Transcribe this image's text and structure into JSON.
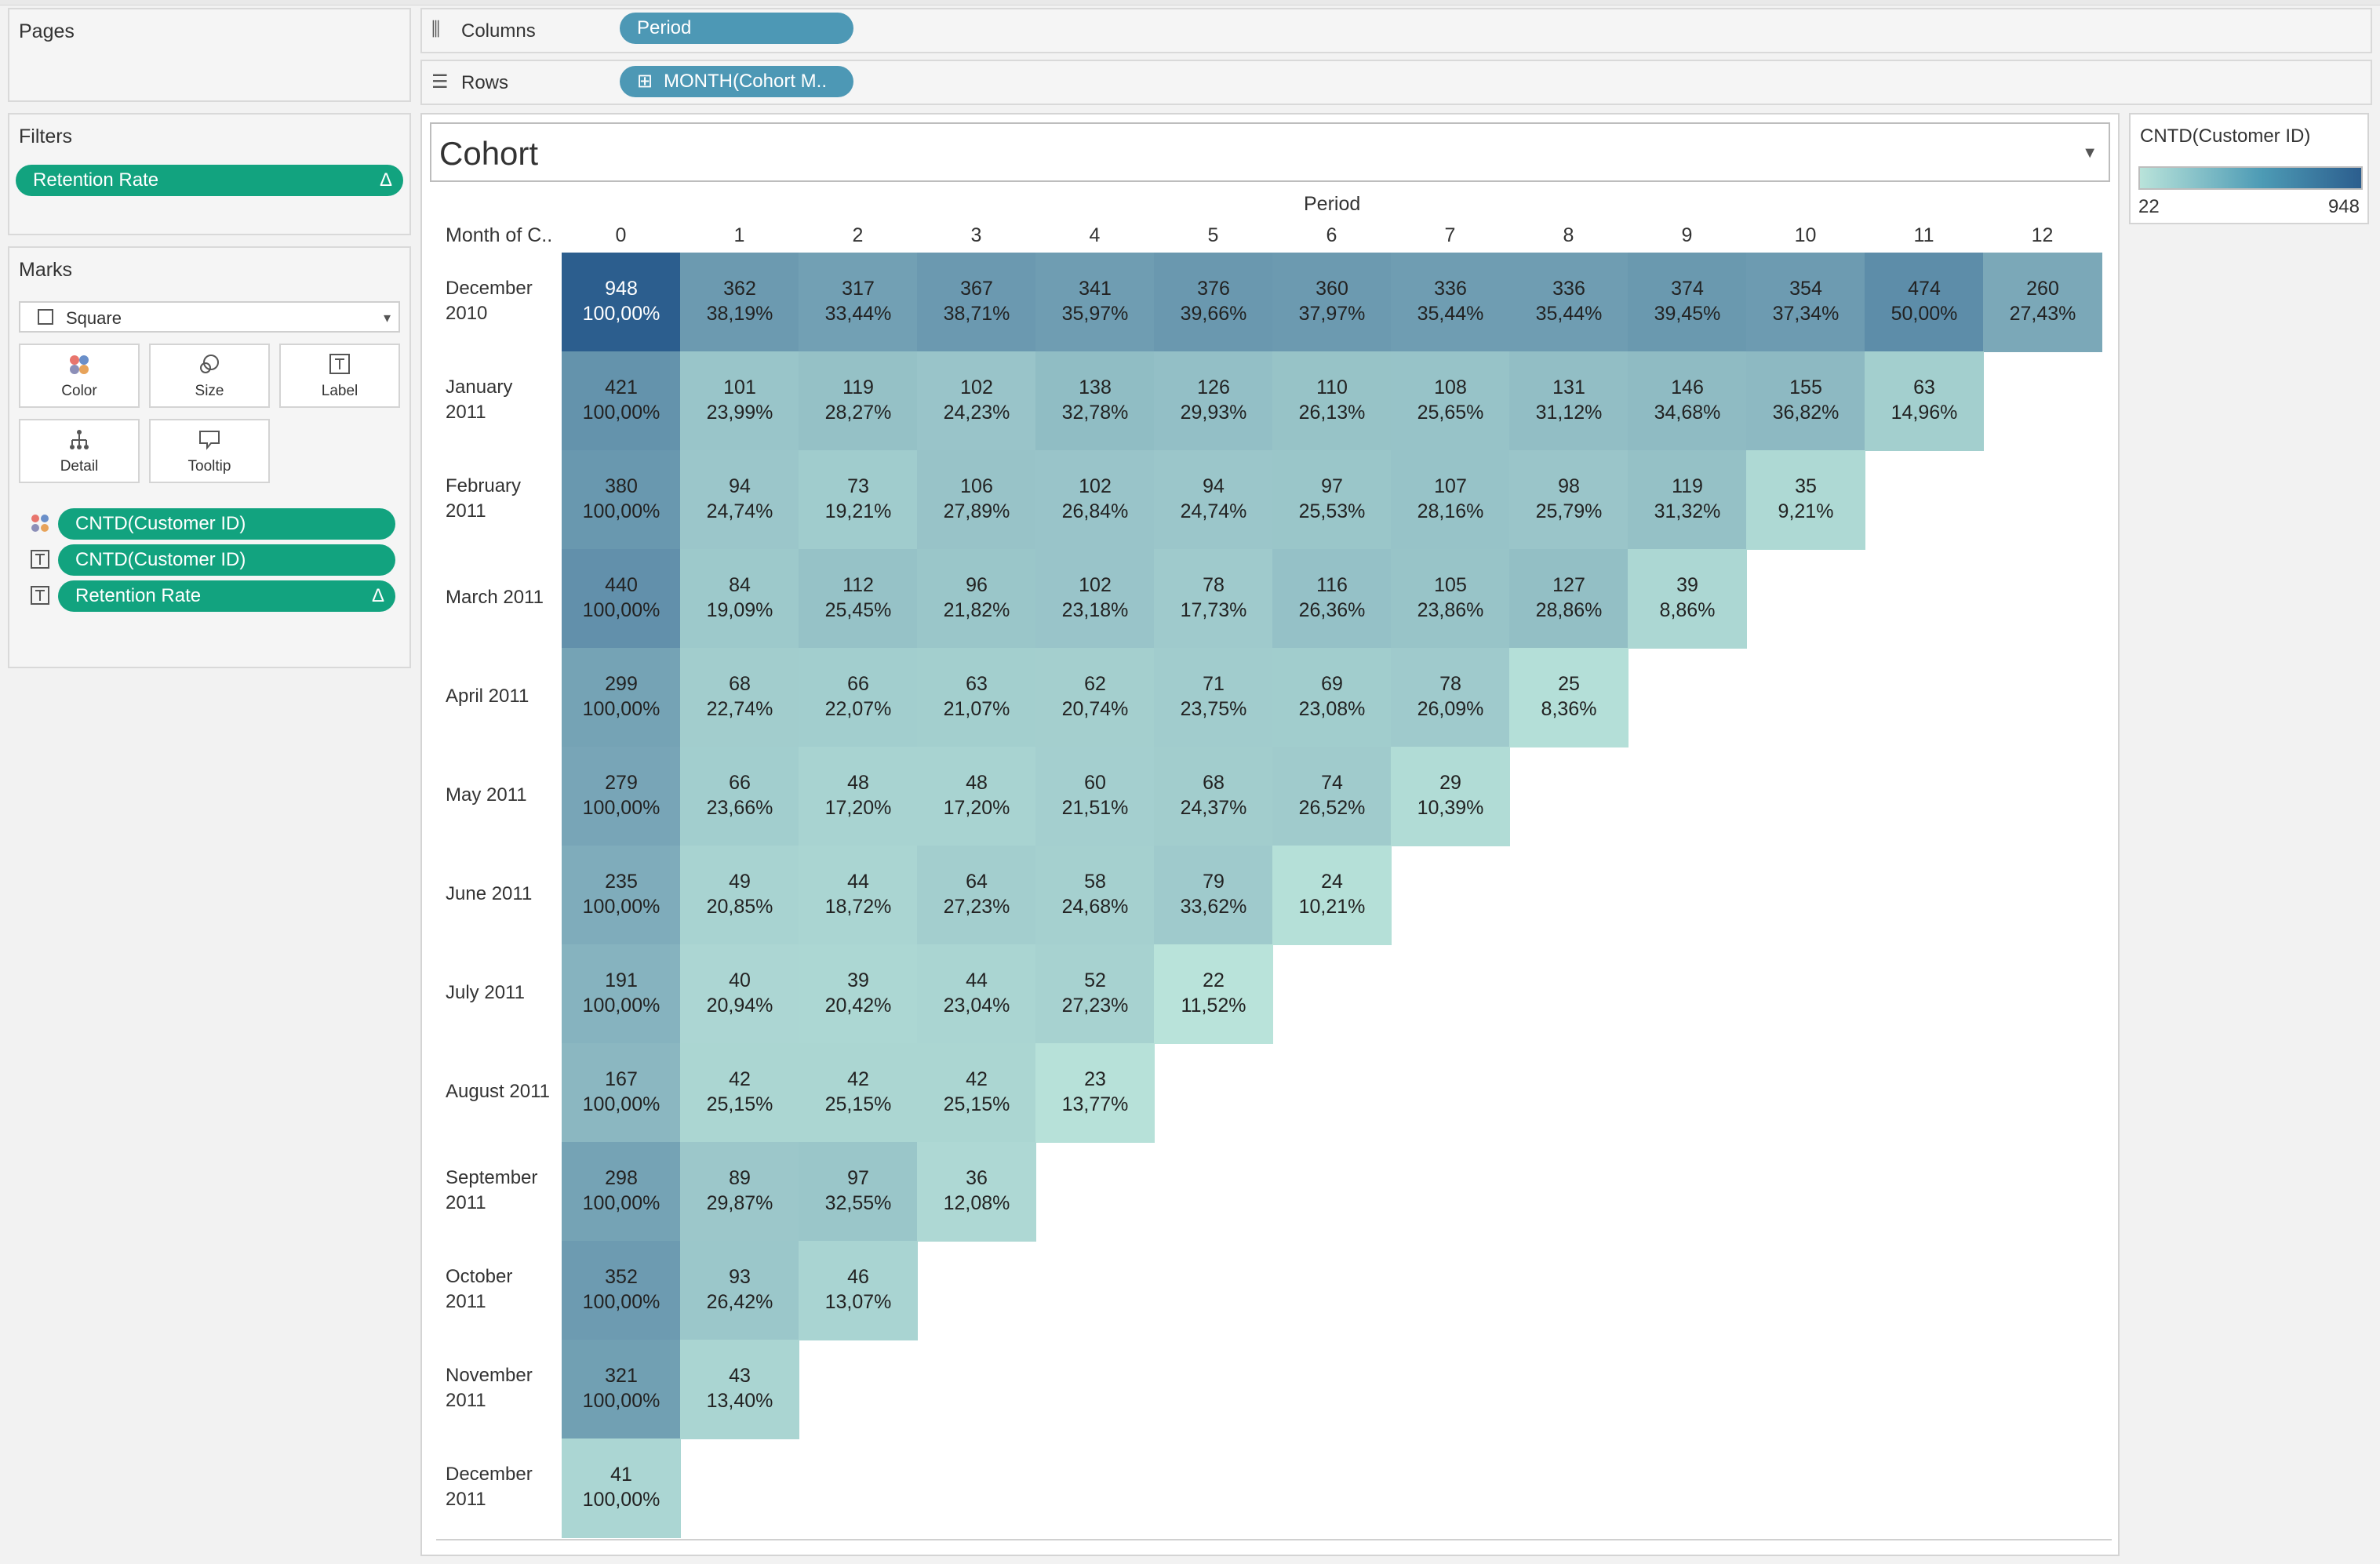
{
  "pages": {
    "title": "Pages"
  },
  "filters": {
    "title": "Filters",
    "items": [
      {
        "label": "Retention Rate",
        "symbol": "Δ"
      }
    ]
  },
  "marks": {
    "title": "Marks",
    "mark_type": "Square",
    "buttons": [
      {
        "label": "Color",
        "icon": "color-dots-icon"
      },
      {
        "label": "Size",
        "icon": "size-circles-icon"
      },
      {
        "label": "Label",
        "icon": "label-t-icon"
      },
      {
        "label": "Detail",
        "icon": "detail-tree-icon"
      },
      {
        "label": "Tooltip",
        "icon": "tooltip-bubble-icon"
      }
    ],
    "fields": [
      {
        "label": "CNTD(Customer ID)",
        "icon": "color-dots-icon",
        "symbol": ""
      },
      {
        "label": "CNTD(Customer ID)",
        "icon": "label-t-icon",
        "symbol": ""
      },
      {
        "label": "Retention Rate",
        "icon": "label-t-icon",
        "symbol": "Δ"
      }
    ]
  },
  "shelves": {
    "columns_label": "Columns",
    "columns_pill": "Period",
    "rows_label": "Rows",
    "rows_pill": "MONTH(Cohort M.."
  },
  "sheet": {
    "title": "Cohort",
    "period_header": "Period",
    "row_header": "Month of C..",
    "columns": [
      "0",
      "1",
      "2",
      "3",
      "4",
      "5",
      "6",
      "7",
      "8",
      "9",
      "10",
      "11",
      "12"
    ]
  },
  "legend": {
    "title": "CNTD(Customer ID)",
    "min": "22",
    "max": "948",
    "min_value": 22,
    "max_value": 948,
    "color_low": "#b9e3da",
    "color_high": "#2c5e8e"
  },
  "chart_data": {
    "type": "heatmap",
    "title": "Cohort",
    "x_label": "Period",
    "y_label": "Month of C..",
    "rows": [
      {
        "label": "December 2010",
        "counts": [
          948,
          362,
          317,
          367,
          341,
          376,
          360,
          336,
          336,
          374,
          354,
          474,
          260
        ],
        "rates": [
          "100,00%",
          "38,19%",
          "33,44%",
          "38,71%",
          "35,97%",
          "39,66%",
          "37,97%",
          "35,44%",
          "35,44%",
          "39,45%",
          "37,34%",
          "50,00%",
          "27,43%"
        ]
      },
      {
        "label": "January 2011",
        "counts": [
          421,
          101,
          119,
          102,
          138,
          126,
          110,
          108,
          131,
          146,
          155,
          63
        ],
        "rates": [
          "100,00%",
          "23,99%",
          "28,27%",
          "24,23%",
          "32,78%",
          "29,93%",
          "26,13%",
          "25,65%",
          "31,12%",
          "34,68%",
          "36,82%",
          "14,96%"
        ]
      },
      {
        "label": "February 2011",
        "counts": [
          380,
          94,
          73,
          106,
          102,
          94,
          97,
          107,
          98,
          119,
          35
        ],
        "rates": [
          "100,00%",
          "24,74%",
          "19,21%",
          "27,89%",
          "26,84%",
          "24,74%",
          "25,53%",
          "28,16%",
          "25,79%",
          "31,32%",
          "9,21%"
        ]
      },
      {
        "label": "March 2011",
        "counts": [
          440,
          84,
          112,
          96,
          102,
          78,
          116,
          105,
          127,
          39
        ],
        "rates": [
          "100,00%",
          "19,09%",
          "25,45%",
          "21,82%",
          "23,18%",
          "17,73%",
          "26,36%",
          "23,86%",
          "28,86%",
          "8,86%"
        ]
      },
      {
        "label": "April 2011",
        "counts": [
          299,
          68,
          66,
          63,
          62,
          71,
          69,
          78,
          25
        ],
        "rates": [
          "100,00%",
          "22,74%",
          "22,07%",
          "21,07%",
          "20,74%",
          "23,75%",
          "23,08%",
          "26,09%",
          "8,36%"
        ]
      },
      {
        "label": "May 2011",
        "counts": [
          279,
          66,
          48,
          48,
          60,
          68,
          74,
          29
        ],
        "rates": [
          "100,00%",
          "23,66%",
          "17,20%",
          "17,20%",
          "21,51%",
          "24,37%",
          "26,52%",
          "10,39%"
        ]
      },
      {
        "label": "June 2011",
        "counts": [
          235,
          49,
          44,
          64,
          58,
          79,
          24
        ],
        "rates": [
          "100,00%",
          "20,85%",
          "18,72%",
          "27,23%",
          "24,68%",
          "33,62%",
          "10,21%"
        ]
      },
      {
        "label": "July 2011",
        "counts": [
          191,
          40,
          39,
          44,
          52,
          22
        ],
        "rates": [
          "100,00%",
          "20,94%",
          "20,42%",
          "23,04%",
          "27,23%",
          "11,52%"
        ]
      },
      {
        "label": "August 2011",
        "counts": [
          167,
          42,
          42,
          42,
          23
        ],
        "rates": [
          "100,00%",
          "25,15%",
          "25,15%",
          "25,15%",
          "13,77%"
        ]
      },
      {
        "label": "September 2011",
        "counts": [
          298,
          89,
          97,
          36
        ],
        "rates": [
          "100,00%",
          "29,87%",
          "32,55%",
          "12,08%"
        ]
      },
      {
        "label": "October 2011",
        "counts": [
          352,
          93,
          46
        ],
        "rates": [
          "100,00%",
          "26,42%",
          "13,07%"
        ]
      },
      {
        "label": "November 2011",
        "counts": [
          321,
          43
        ],
        "rates": [
          "100,00%",
          "13,40%"
        ]
      },
      {
        "label": "December 2011",
        "counts": [
          41
        ],
        "rates": [
          "100,00%"
        ]
      }
    ]
  }
}
